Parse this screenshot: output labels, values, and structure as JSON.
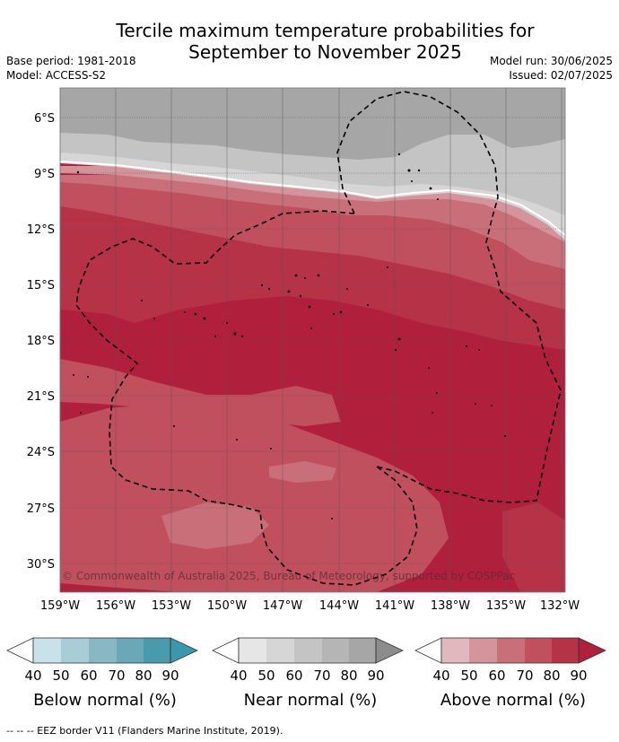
{
  "header": {
    "title_line1": "Tercile maximum temperature probabilities for",
    "title_line2": "September to November 2025",
    "base_period": "Base period: 1981-2018",
    "model": "Model: ACCESS-S2",
    "model_run": "Model run: 30/06/2025",
    "issued": "Issued: 02/07/2025"
  },
  "map": {
    "lat_labels": [
      "6°S",
      "9°S",
      "12°S",
      "15°S",
      "18°S",
      "21°S",
      "24°S",
      "27°S",
      "30°S"
    ],
    "lon_labels": [
      "159°W",
      "156°W",
      "153°W",
      "150°W",
      "147°W",
      "144°W",
      "141°W",
      "138°W",
      "135°W",
      "132°W"
    ],
    "copyright": "© Commonwealth of Australia 2025, Bureau of Meteorology, supported by COSPPac",
    "colors": {
      "near_90": "#8c8c8c",
      "near_80": "#a6a6a6",
      "near_70": "#c4c4c4",
      "near_60": "#d6d6d6",
      "above_50": "#d4949c",
      "above_60": "#c96f7a",
      "above_70": "#c0505d",
      "above_80": "#b53247",
      "above_90": "#b01f3b"
    }
  },
  "legends": [
    {
      "caption": "Below normal (%)",
      "ticks": [
        "40",
        "50",
        "60",
        "70",
        "80",
        "90"
      ],
      "colors": [
        "#c9e2ea",
        "#a9cdd6",
        "#87b8c4",
        "#6aa7b7",
        "#4a9aad"
      ],
      "tip_color": "#3a98ad"
    },
    {
      "caption": "Near normal (%)",
      "ticks": [
        "40",
        "50",
        "60",
        "70",
        "80",
        "90"
      ],
      "colors": [
        "#e6e6e6",
        "#d6d6d6",
        "#c4c4c4",
        "#b5b5b5",
        "#a6a6a6"
      ],
      "tip_color": "#8c8c8c"
    },
    {
      "caption": "Above normal (%)",
      "ticks": [
        "40",
        "50",
        "60",
        "70",
        "80",
        "90"
      ],
      "colors": [
        "#e0b8be",
        "#d4949c",
        "#c96f7a",
        "#c0505d",
        "#b53247"
      ],
      "tip_color": "#b01f3b"
    }
  ],
  "footer": "-- -- -- EEZ border V11 (Flanders Marine Institute, 2019)."
}
